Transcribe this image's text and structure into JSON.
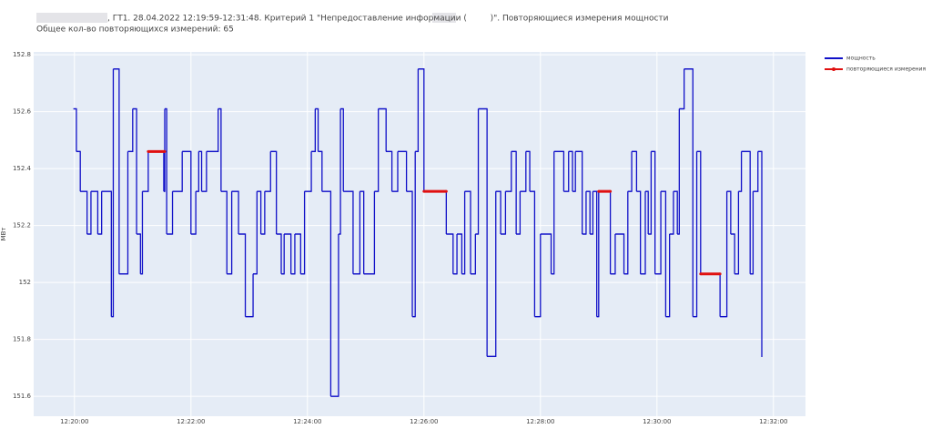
{
  "chart_data": {
    "type": "step",
    "title": ", ГТ1. 28.04.2022 12:19:59-12:31:48. Критерий 1 \"Непредоставление информации (         )\". Повторяющиеся измерения мощности",
    "subtitle": "Общее кол-во повторяющихся измерений: 65",
    "y_label": "МВт",
    "xlim": [
      "12:19:18",
      "12:32:33"
    ],
    "xticks": [
      "12:20:00",
      "12:22:00",
      "12:24:00",
      "12:26:00",
      "12:28:00",
      "12:30:00",
      "12:32:00"
    ],
    "ylim": [
      151.53,
      152.81
    ],
    "yticks": [
      151.6,
      151.8,
      152,
      152.2,
      152.4,
      152.6,
      152.8
    ],
    "grid": true,
    "legend": "top-right",
    "series": [
      {
        "name": "мощность",
        "color": "#1010c8",
        "x": [
          "12:19:59",
          "12:20:02",
          "12:20:06",
          "12:20:13",
          "12:20:17",
          "12:20:24",
          "12:20:28",
          "12:20:38",
          "12:20:40",
          "12:20:46",
          "12:20:55",
          "12:21:00",
          "12:21:04",
          "12:21:08",
          "12:21:10",
          "12:21:16",
          "12:21:32",
          "12:21:33",
          "12:21:35",
          "12:21:41",
          "12:21:51",
          "12:22:00",
          "12:22:05",
          "12:22:08",
          "12:22:11",
          "12:22:16",
          "12:22:28",
          "12:22:31",
          "12:22:37",
          "12:22:42",
          "12:22:49",
          "12:22:56",
          "12:23:04",
          "12:23:08",
          "12:23:12",
          "12:23:16",
          "12:23:22",
          "12:23:28",
          "12:23:33",
          "12:23:36",
          "12:23:43",
          "12:23:47",
          "12:23:53",
          "12:23:57",
          "12:24:04",
          "12:24:08",
          "12:24:11",
          "12:24:15",
          "12:24:24",
          "12:24:32",
          "12:24:34",
          "12:24:37",
          "12:24:47",
          "12:24:54",
          "12:24:58",
          "12:25:09",
          "12:25:13",
          "12:25:21",
          "12:25:27",
          "12:25:33",
          "12:25:42",
          "12:25:48",
          "12:25:51",
          "12:25:54",
          "12:26:00",
          "12:26:23",
          "12:26:30",
          "12:26:34",
          "12:26:39",
          "12:26:42",
          "12:26:48",
          "12:26:53",
          "12:26:56",
          "12:27:05",
          "12:27:14",
          "12:27:19",
          "12:27:24",
          "12:27:30",
          "12:27:35",
          "12:27:39",
          "12:27:45",
          "12:27:49",
          "12:27:54",
          "12:28:00",
          "12:28:11",
          "12:28:14",
          "12:28:24",
          "12:28:29",
          "12:28:33",
          "12:28:36",
          "12:28:43",
          "12:28:47",
          "12:28:51",
          "12:28:54",
          "12:28:58",
          "12:29:00",
          "12:29:12",
          "12:29:17",
          "12:29:26",
          "12:29:30",
          "12:29:34",
          "12:29:39",
          "12:29:43",
          "12:29:48",
          "12:29:51",
          "12:29:54",
          "12:29:58",
          "12:30:04",
          "12:30:09",
          "12:30:13",
          "12:30:17",
          "12:30:21",
          "12:30:23",
          "12:30:28",
          "12:30:37",
          "12:30:41",
          "12:30:45",
          "12:31:05",
          "12:31:12",
          "12:31:16",
          "12:31:20",
          "12:31:24",
          "12:31:27",
          "12:31:36",
          "12:31:39",
          "12:31:44",
          "12:31:48"
        ],
        "values": [
          152.61,
          152.46,
          152.32,
          152.17,
          152.32,
          152.17,
          152.32,
          151.88,
          152.75,
          152.03,
          152.46,
          152.61,
          152.17,
          152.03,
          152.32,
          152.46,
          152.32,
          152.61,
          152.17,
          152.32,
          152.46,
          152.17,
          152.32,
          152.46,
          152.32,
          152.46,
          152.61,
          152.32,
          152.03,
          152.32,
          152.17,
          151.88,
          152.03,
          152.32,
          152.17,
          152.32,
          152.46,
          152.17,
          152.03,
          152.17,
          152.03,
          152.17,
          152.03,
          152.32,
          152.46,
          152.61,
          152.46,
          152.32,
          151.6,
          152.17,
          152.61,
          152.32,
          152.03,
          152.32,
          152.03,
          152.32,
          152.61,
          152.46,
          152.32,
          152.46,
          152.32,
          151.88,
          152.46,
          152.75,
          152.32,
          152.17,
          152.03,
          152.17,
          152.03,
          152.32,
          152.03,
          152.17,
          152.61,
          151.74,
          152.32,
          152.17,
          152.32,
          152.46,
          152.17,
          152.32,
          152.46,
          152.32,
          151.88,
          152.17,
          152.03,
          152.46,
          152.32,
          152.46,
          152.32,
          152.46,
          152.17,
          152.32,
          152.17,
          152.32,
          151.88,
          152.32,
          152.03,
          152.17,
          152.03,
          152.32,
          152.46,
          152.32,
          152.03,
          152.32,
          152.17,
          152.46,
          152.03,
          152.32,
          151.88,
          152.17,
          152.32,
          152.17,
          152.61,
          152.75,
          151.88,
          152.46,
          152.03,
          151.88,
          152.32,
          152.17,
          152.03,
          152.32,
          152.46,
          152.03,
          152.32,
          152.46,
          151.74
        ]
      },
      {
        "name": "повторяющиеся измерения",
        "color": "#e01010",
        "x": [
          "12:21:16",
          "12:21:33",
          null,
          "12:26:00",
          "12:26:23",
          null,
          "12:29:00",
          "12:29:12",
          null,
          "12:30:45",
          "12:31:05"
        ],
        "values": [
          152.46,
          152.46,
          null,
          152.32,
          152.32,
          null,
          152.32,
          152.32,
          null,
          152.03,
          152.03
        ]
      }
    ]
  }
}
